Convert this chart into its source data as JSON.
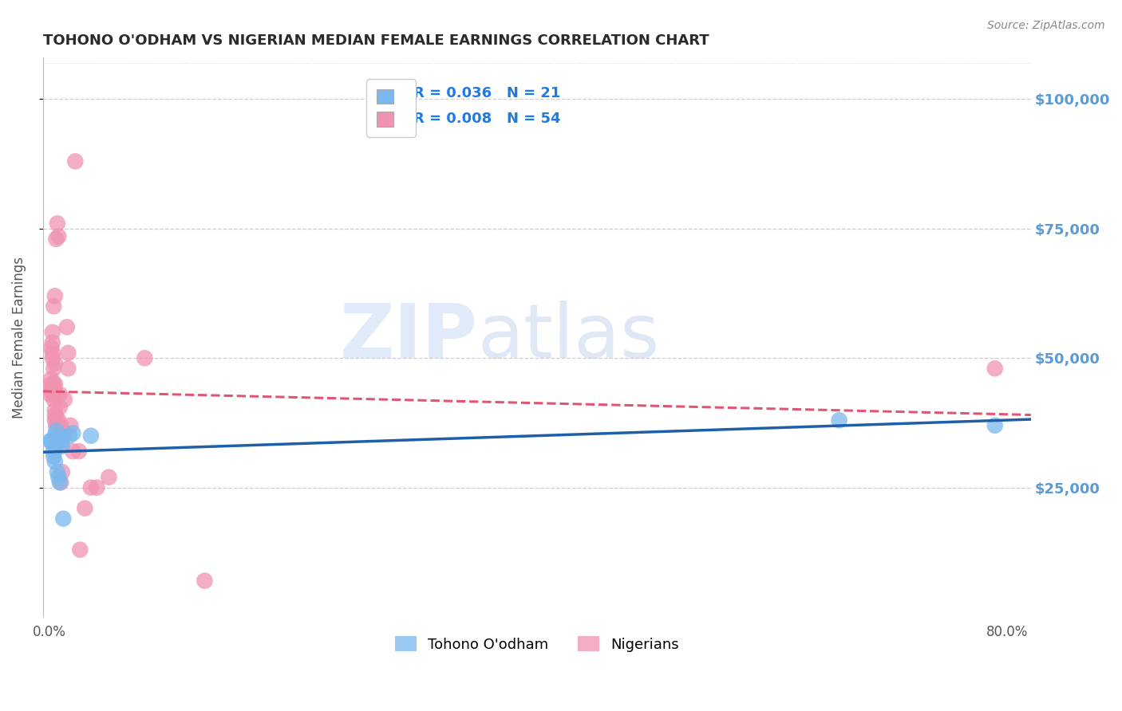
{
  "title": "TOHONO O'ODHAM VS NIGERIAN MEDIAN FEMALE EARNINGS CORRELATION CHART",
  "source": "Source: ZipAtlas.com",
  "ylabel": "Median Female Earnings",
  "xlabel_ticks": [
    "0.0%",
    "",
    "",
    "",
    "",
    "",
    "",
    "",
    "80.0%"
  ],
  "ytick_labels": [
    "$25,000",
    "$50,000",
    "$75,000",
    "$100,000"
  ],
  "ytick_values": [
    25000,
    50000,
    75000,
    100000
  ],
  "xlim": [
    -0.005,
    0.82
  ],
  "ylim": [
    0,
    108000
  ],
  "tohono_color": "#7ab8ed",
  "nigerian_color": "#f093b0",
  "tohono_line_color": "#1e5fa8",
  "nigerian_line_color": "#e05575",
  "tohono_scatter": [
    [
      0.001,
      34000
    ],
    [
      0.002,
      34000
    ],
    [
      0.003,
      33500
    ],
    [
      0.004,
      32000
    ],
    [
      0.004,
      31000
    ],
    [
      0.005,
      35000
    ],
    [
      0.005,
      30000
    ],
    [
      0.006,
      36000
    ],
    [
      0.007,
      34000
    ],
    [
      0.007,
      28000
    ],
    [
      0.008,
      27000
    ],
    [
      0.009,
      26000
    ],
    [
      0.01,
      35000
    ],
    [
      0.01,
      34000
    ],
    [
      0.011,
      33000
    ],
    [
      0.012,
      19000
    ],
    [
      0.017,
      35000
    ],
    [
      0.02,
      35500
    ],
    [
      0.035,
      35000
    ],
    [
      0.66,
      38000
    ],
    [
      0.79,
      37000
    ]
  ],
  "nigerian_scatter": [
    [
      0.001,
      44000
    ],
    [
      0.001,
      43000
    ],
    [
      0.002,
      45000
    ],
    [
      0.002,
      46000
    ],
    [
      0.002,
      52000
    ],
    [
      0.003,
      44500
    ],
    [
      0.003,
      50000
    ],
    [
      0.003,
      51000
    ],
    [
      0.003,
      53000
    ],
    [
      0.003,
      55000
    ],
    [
      0.004,
      48000
    ],
    [
      0.004,
      44000
    ],
    [
      0.004,
      43000
    ],
    [
      0.004,
      42000
    ],
    [
      0.004,
      44000
    ],
    [
      0.004,
      45000
    ],
    [
      0.004,
      60000
    ],
    [
      0.005,
      45000
    ],
    [
      0.005,
      62000
    ],
    [
      0.005,
      49000
    ],
    [
      0.005,
      39000
    ],
    [
      0.005,
      38000
    ],
    [
      0.005,
      40000
    ],
    [
      0.006,
      43000
    ],
    [
      0.006,
      37000
    ],
    [
      0.006,
      38500
    ],
    [
      0.006,
      73000
    ],
    [
      0.007,
      76000
    ],
    [
      0.008,
      73500
    ],
    [
      0.008,
      37000
    ],
    [
      0.008,
      38000
    ],
    [
      0.009,
      40500
    ],
    [
      0.009,
      43000
    ],
    [
      0.01,
      37000
    ],
    [
      0.01,
      26000
    ],
    [
      0.011,
      28000
    ],
    [
      0.011,
      34000
    ],
    [
      0.012,
      35000
    ],
    [
      0.013,
      42000
    ],
    [
      0.015,
      56000
    ],
    [
      0.016,
      51000
    ],
    [
      0.016,
      48000
    ],
    [
      0.018,
      37000
    ],
    [
      0.02,
      32000
    ],
    [
      0.022,
      88000
    ],
    [
      0.025,
      32000
    ],
    [
      0.026,
      13000
    ],
    [
      0.03,
      21000
    ],
    [
      0.035,
      25000
    ],
    [
      0.04,
      25000
    ],
    [
      0.05,
      27000
    ],
    [
      0.08,
      50000
    ],
    [
      0.13,
      7000
    ],
    [
      0.79,
      48000
    ]
  ],
  "watermark_zip": "ZIP",
  "watermark_atlas": "atlas",
  "background_color": "#ffffff",
  "grid_color": "#cccccc",
  "grid_dotted_color": "#dddddd",
  "title_color": "#2a2a2a",
  "axis_label_color": "#555555",
  "right_axis_color": "#5b9bd5",
  "legend_r1": "R = 0.036",
  "legend_n1": "N = 21",
  "legend_r2": "R = 0.008",
  "legend_n2": "N = 54",
  "legend_text_color": "#222222",
  "legend_num_color": "#1e7be0"
}
